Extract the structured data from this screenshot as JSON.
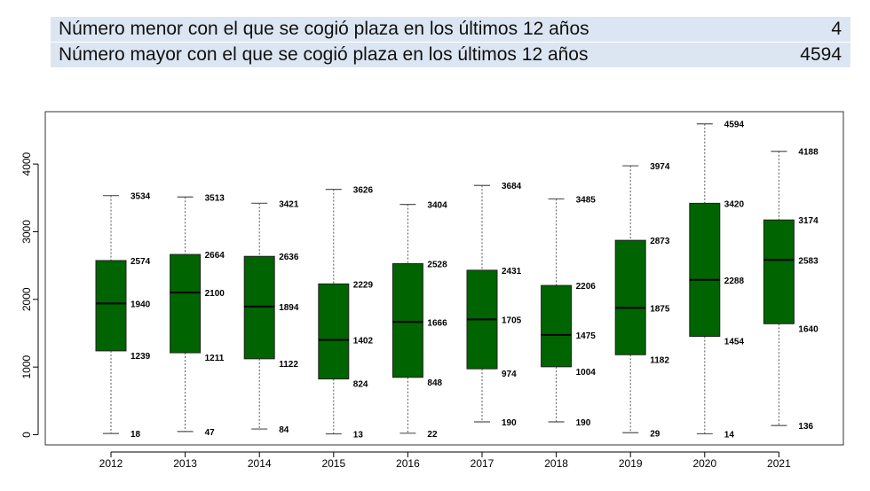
{
  "info": {
    "rows": [
      {
        "label": "Número menor con el que se cogió plaza en los últimos 12 años",
        "value": "4"
      },
      {
        "label": "Número mayor con el que se cogió plaza en los últimos 12 años",
        "value": "4594"
      }
    ]
  },
  "colors": {
    "box_fill": "#006400",
    "info_bg": "#dce6f2",
    "whisker": "#555555"
  },
  "chart_data": {
    "type": "boxplot",
    "title": "",
    "xlabel": "",
    "ylabel": "",
    "ylim": [
      -100,
      4700
    ],
    "yticks": [
      0,
      1000,
      2000,
      3000,
      4000
    ],
    "grid": false,
    "categories": [
      "2012",
      "2013",
      "2014",
      "2015",
      "2016",
      "2017",
      "2018",
      "2019",
      "2020",
      "2021"
    ],
    "boxes": [
      {
        "min": 18,
        "q1": 1239,
        "median": 1940,
        "q3": 2574,
        "max": 3534
      },
      {
        "min": 47,
        "q1": 1211,
        "median": 2100,
        "q3": 2664,
        "max": 3513
      },
      {
        "min": 84,
        "q1": 1122,
        "median": 1894,
        "q3": 2636,
        "max": 3421
      },
      {
        "min": 13,
        "q1": 824,
        "median": 1402,
        "q3": 2229,
        "max": 3626
      },
      {
        "min": 22,
        "q1": 848,
        "median": 1666,
        "q3": 2528,
        "max": 3404
      },
      {
        "min": 190,
        "q1": 974,
        "median": 1705,
        "q3": 2431,
        "max": 3684
      },
      {
        "min": 190,
        "q1": 1004,
        "median": 1475,
        "q3": 2206,
        "max": 3485
      },
      {
        "min": 29,
        "q1": 1182,
        "median": 1875,
        "q3": 2873,
        "max": 3974
      },
      {
        "min": 14,
        "q1": 1454,
        "median": 2288,
        "q3": 3420,
        "max": 4594
      },
      {
        "min": 136,
        "q1": 1640,
        "median": 2583,
        "q3": 3174,
        "max": 4188
      }
    ]
  }
}
